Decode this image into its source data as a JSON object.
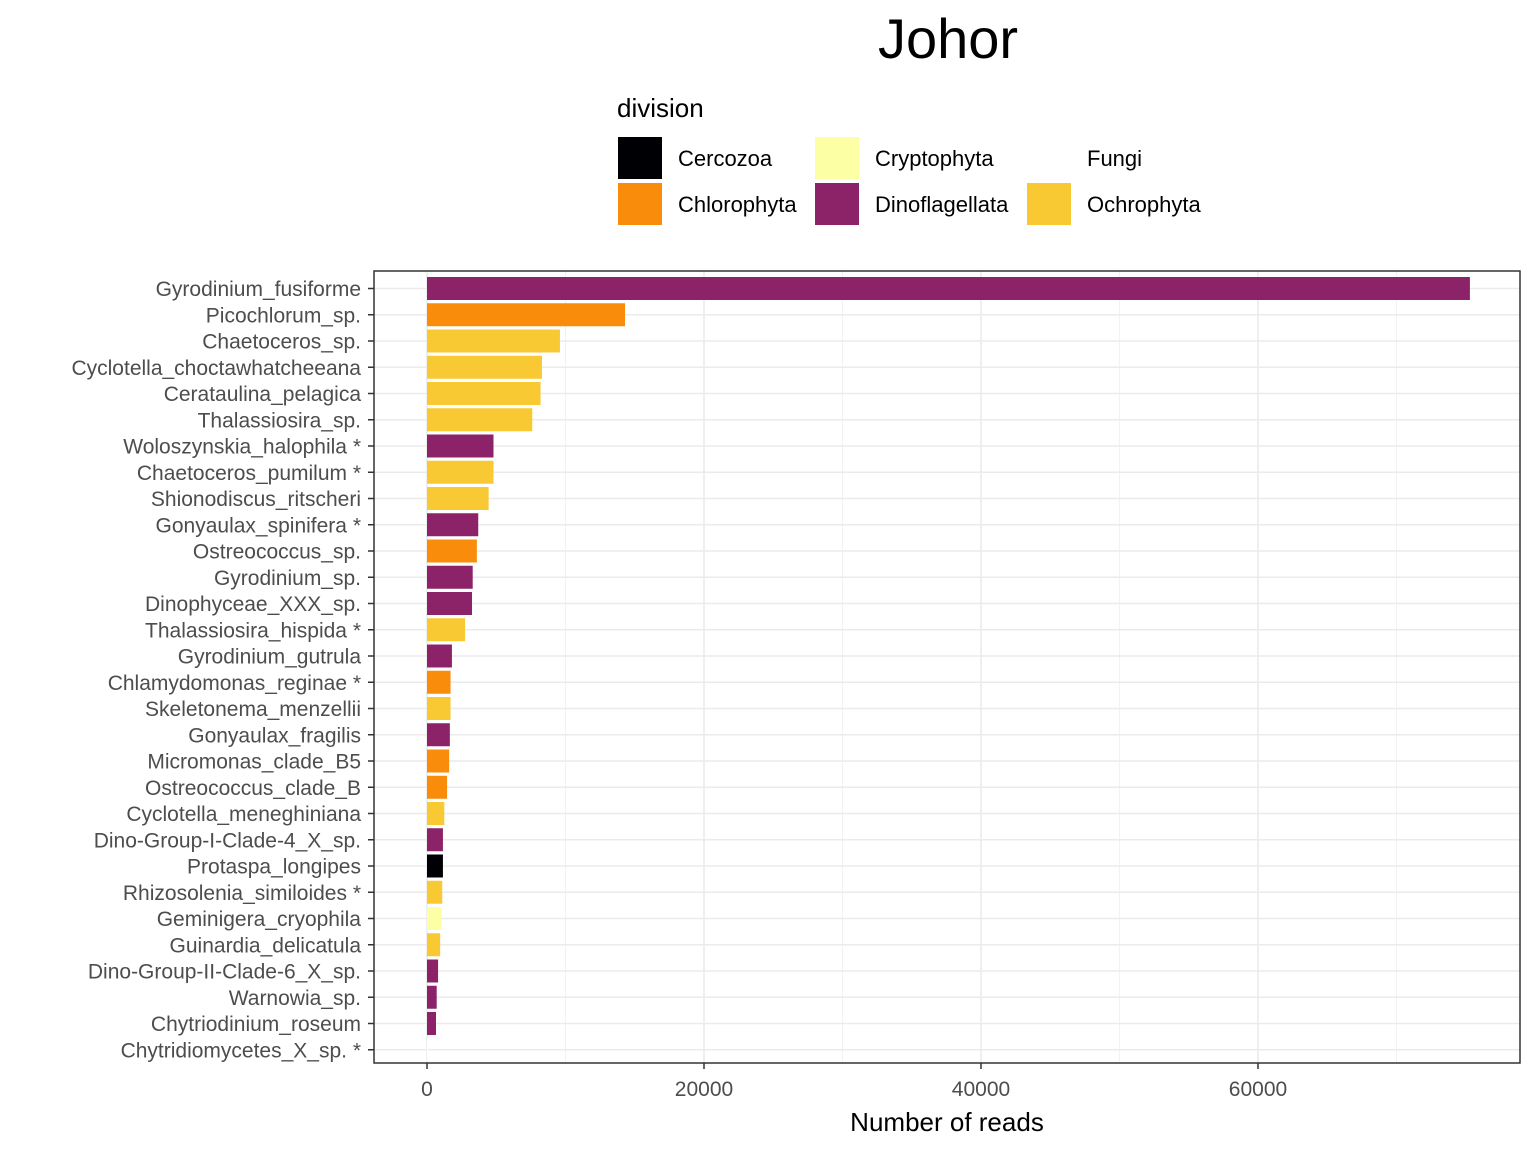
{
  "chart_data": {
    "type": "bar",
    "orientation": "horizontal",
    "title": "Johor",
    "xlabel": "Number of reads",
    "ylabel": "",
    "xlim": [
      -3500,
      79000
    ],
    "x_ticks": [
      0,
      20000,
      40000,
      60000
    ],
    "grid": true,
    "legend": {
      "title": "division",
      "placement": "top",
      "entries": [
        {
          "label": "Cercozoa",
          "color": "#000004"
        },
        {
          "label": "Cryptophyta",
          "color": "#FCFFA4"
        },
        {
          "label": "Fungi",
          "color": "#FFFFFF"
        },
        {
          "label": "Chlorophyta",
          "color": "#F98C0A"
        },
        {
          "label": "Dinoflagellata",
          "color": "#8C2369"
        },
        {
          "label": "Ochrophyta",
          "color": "#F8C932"
        }
      ]
    },
    "categories": [
      "Gyrodinium_fusiforme",
      "Picochlorum_sp.",
      "Chaetoceros_sp.",
      "Cyclotella_choctawhatcheeana",
      "Cerataulina_pelagica",
      "Thalassiosira_sp.",
      "Woloszynskia_halophila *",
      "Chaetoceros_pumilum *",
      "Shionodiscus_ritscheri",
      "Gonyaulax_spinifera *",
      "Ostreococcus_sp.",
      "Gyrodinium_sp.",
      "Dinophyceae_XXX_sp.",
      "Thalassiosira_hispida *",
      "Gyrodinium_gutrula",
      "Chlamydomonas_reginae *",
      "Skeletonema_menzellii",
      "Gonyaulax_fragilis",
      "Micromonas_clade_B5",
      "Ostreococcus_clade_B",
      "Cyclotella_meneghiniana",
      "Dino-Group-I-Clade-4_X_sp.",
      "Protaspa_longipes",
      "Rhizosolenia_similoides *",
      "Geminigera_cryophila",
      "Guinardia_delicatula",
      "Dino-Group-II-Clade-6_X_sp.",
      "Warnowia_sp.",
      "Chytriodinium_roseum",
      "Chytridiomycetes_X_sp. *"
    ],
    "values": [
      75300,
      14300,
      9600,
      8300,
      8200,
      7600,
      4800,
      4800,
      4450,
      3700,
      3600,
      3300,
      3250,
      2750,
      1800,
      1700,
      1700,
      1650,
      1600,
      1450,
      1250,
      1150,
      1150,
      1100,
      1050,
      950,
      800,
      700,
      650,
      80
    ],
    "divisions": [
      "Dinoflagellata",
      "Chlorophyta",
      "Ochrophyta",
      "Ochrophyta",
      "Ochrophyta",
      "Ochrophyta",
      "Dinoflagellata",
      "Ochrophyta",
      "Ochrophyta",
      "Dinoflagellata",
      "Chlorophyta",
      "Dinoflagellata",
      "Dinoflagellata",
      "Ochrophyta",
      "Dinoflagellata",
      "Chlorophyta",
      "Ochrophyta",
      "Dinoflagellata",
      "Chlorophyta",
      "Chlorophyta",
      "Ochrophyta",
      "Dinoflagellata",
      "Cercozoa",
      "Ochrophyta",
      "Cryptophyta",
      "Ochrophyta",
      "Dinoflagellata",
      "Dinoflagellata",
      "Dinoflagellata",
      "Fungi"
    ]
  }
}
